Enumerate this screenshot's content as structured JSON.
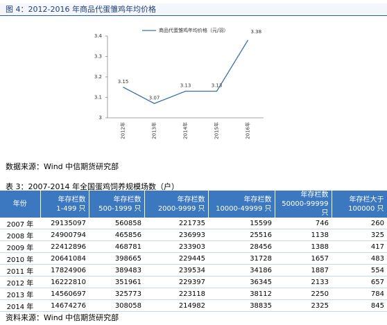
{
  "figure_title": "图 4：2012-2016 年商品代蛋雏鸡年均价格",
  "chart_data": {
    "type": "line",
    "categories": [
      "2012年",
      "2013年",
      "2014年",
      "2015年",
      "2016年"
    ],
    "series": [
      {
        "name": "商品代蛋雏鸡年均价格（元/羽）",
        "color": "#3a6fb5",
        "values": [
          3.15,
          3.07,
          3.13,
          3.13,
          3.38
        ]
      }
    ],
    "ylim": [
      3,
      3.4
    ],
    "yticks": [
      3,
      3.1,
      3.2,
      3.3,
      3.4
    ],
    "grid": false,
    "legend": "top"
  },
  "chart_source": "数据来源：Wind 中信期货研究部",
  "table_title": "表 3：2007-2014 年全国蛋鸡饲养规模场数（户）",
  "table": {
    "header": [
      [
        "年份"
      ],
      [
        "年存栏数",
        "1-499 只"
      ],
      [
        "年存栏数",
        "500-1999 只"
      ],
      [
        "年存栏数",
        "2000-9999 只"
      ],
      [
        "年存栏数",
        "10000-49999 只"
      ],
      [
        "年存栏数",
        "50000-99999 只"
      ],
      [
        "年存栏大于",
        "100000 只"
      ]
    ],
    "rows": [
      [
        "2007 年",
        29135097,
        560858,
        221735,
        15599,
        746,
        260
      ],
      [
        "2008 年",
        24900794,
        465856,
        236993,
        25516,
        1138,
        325
      ],
      [
        "2009 年",
        22412896,
        468781,
        233903,
        28456,
        1388,
        417
      ],
      [
        "2010 年",
        20641084,
        398665,
        229445,
        31728,
        1657,
        483
      ],
      [
        "2011 年",
        17824906,
        389483,
        239534,
        34186,
        1887,
        554
      ],
      [
        "2012 年",
        16222810,
        351961,
        229397,
        36345,
        2133,
        657
      ],
      [
        "2013 年",
        14560697,
        325773,
        223118,
        38112,
        2250,
        784
      ],
      [
        "2014 年",
        14674276,
        308058,
        214982,
        38835,
        2325,
        845
      ]
    ]
  },
  "table_source": "资料来源：Wind 中信期货研究部"
}
